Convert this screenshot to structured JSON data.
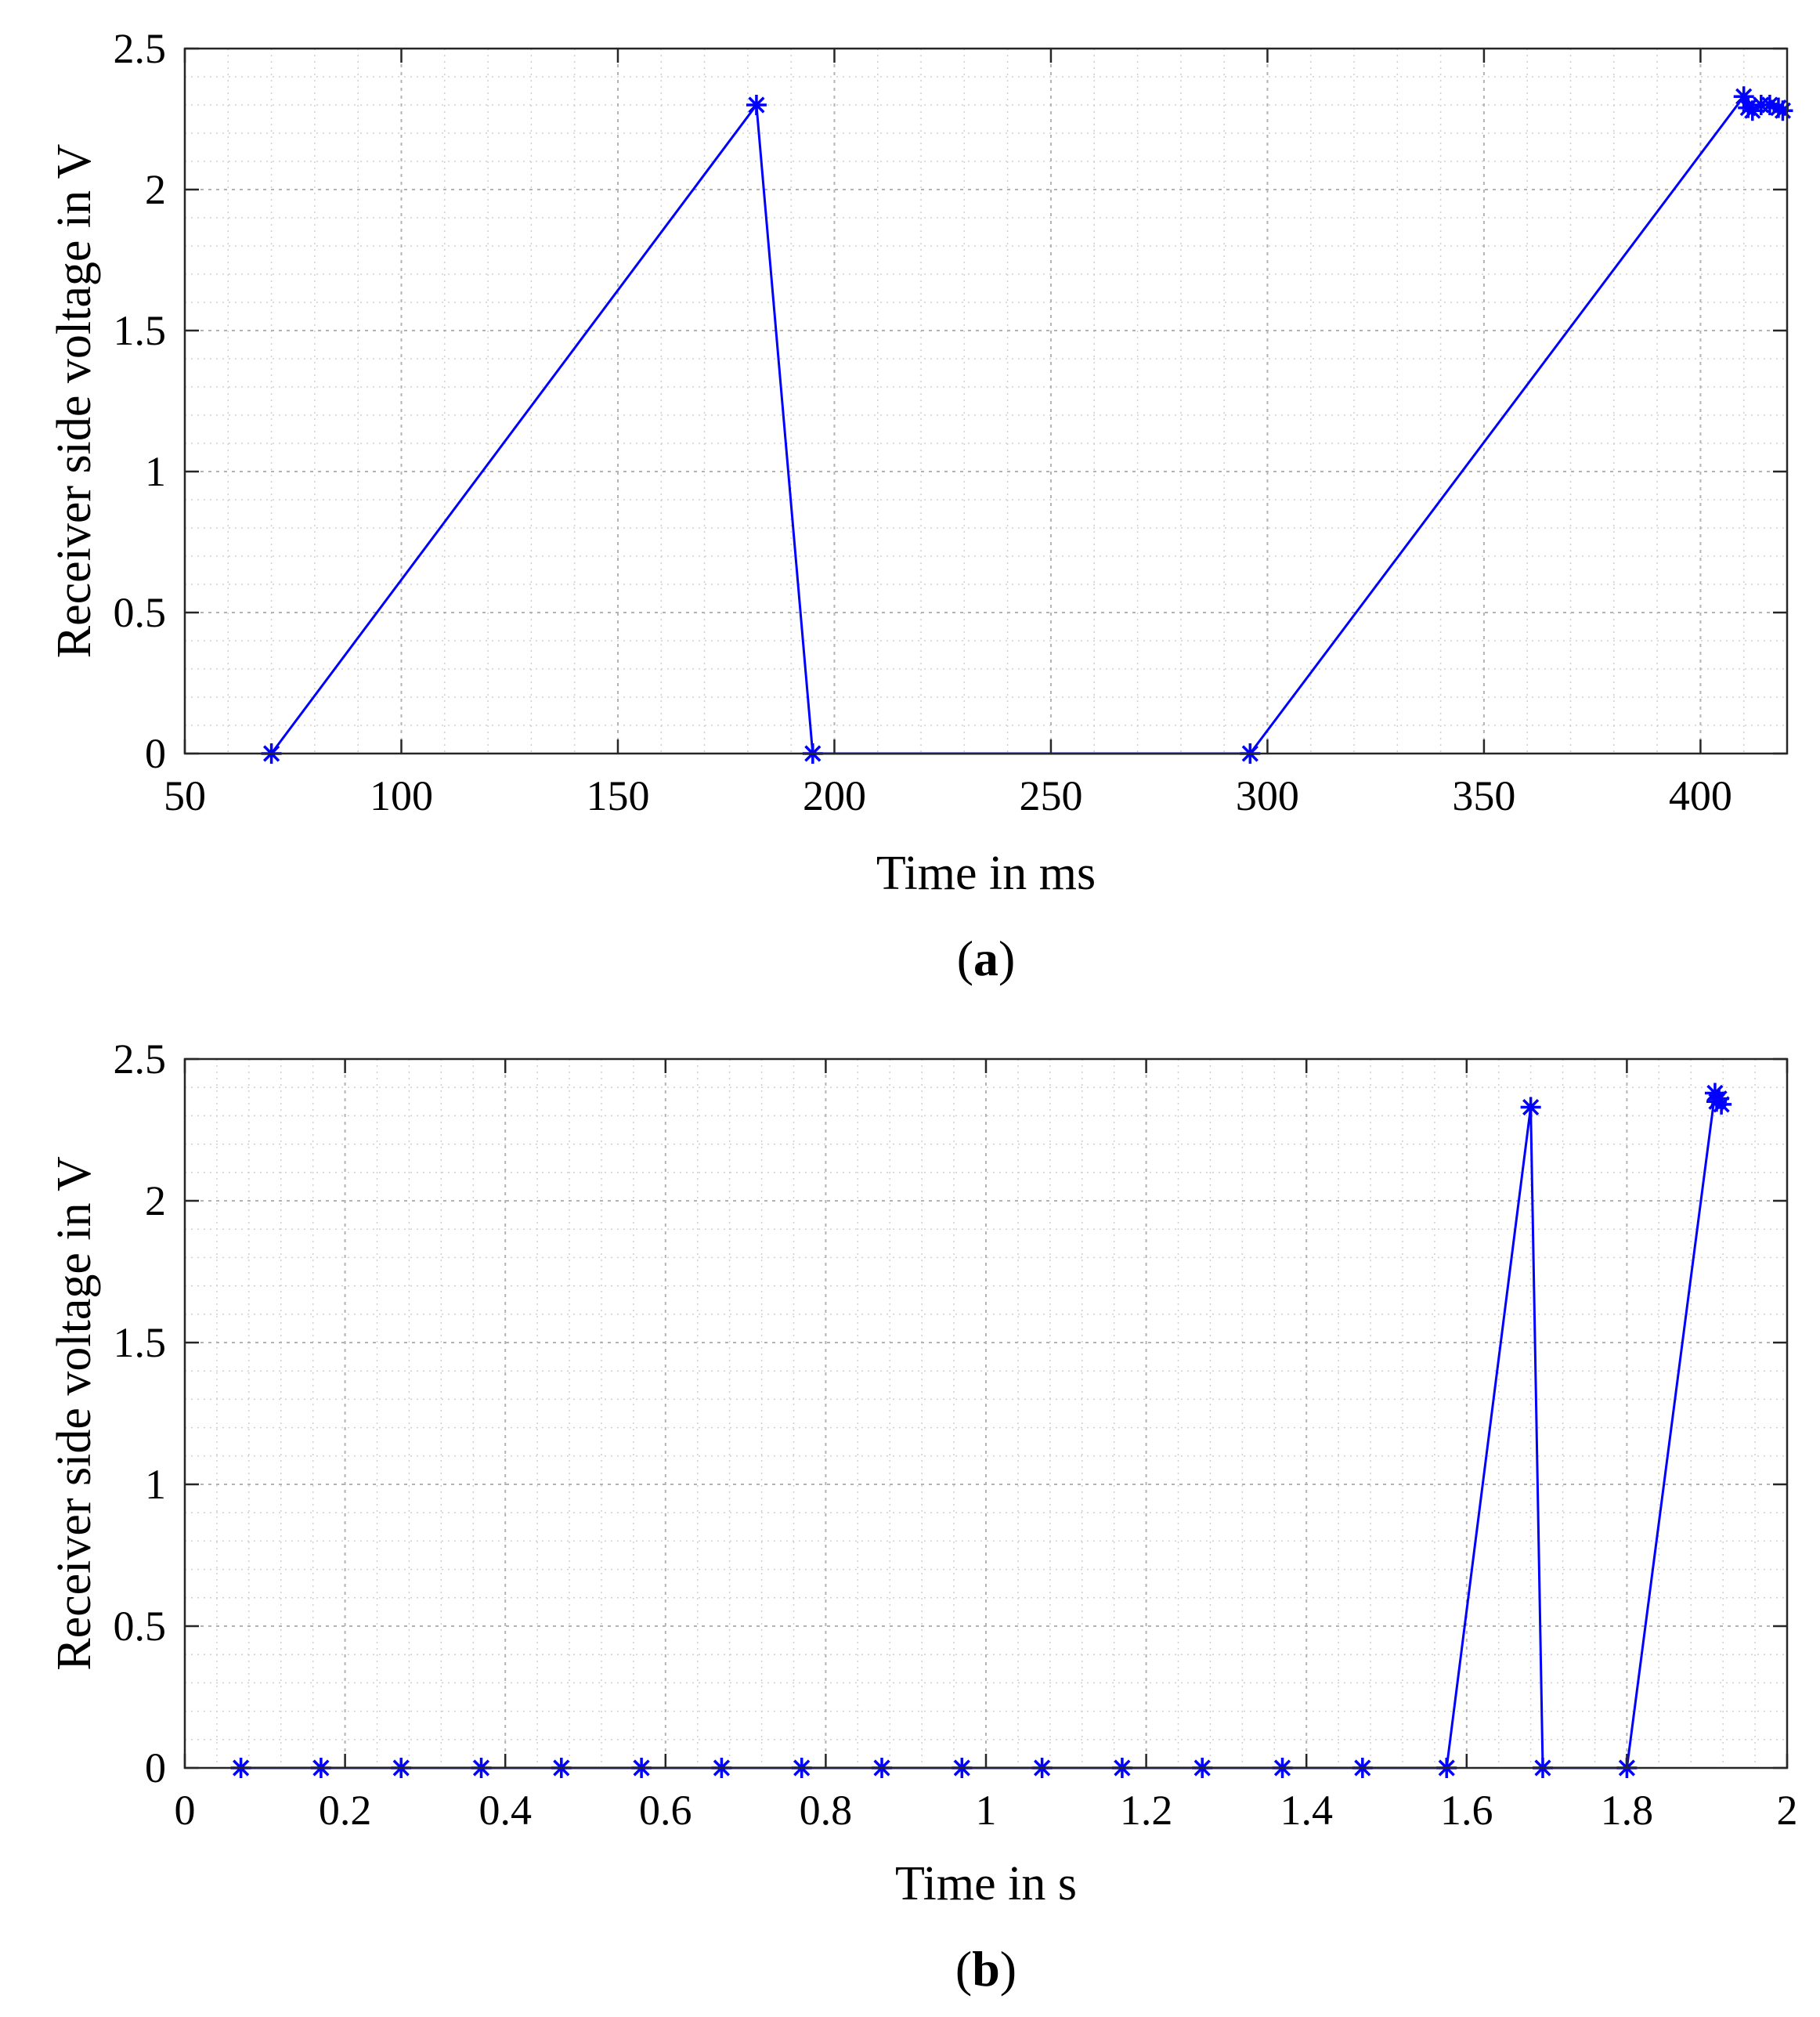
{
  "chart_data": [
    {
      "type": "line",
      "panel_label": "a",
      "xlabel": "Time in ms",
      "ylabel": "Receiver side voltage in V",
      "xlim": [
        50,
        420
      ],
      "ylim": [
        0,
        2.5
      ],
      "xticks": [
        50,
        100,
        150,
        200,
        250,
        300,
        350,
        400
      ],
      "xtick_labels": [
        "50",
        "100",
        "150",
        "200",
        "250",
        "300",
        "350",
        "400"
      ],
      "yticks": [
        0,
        0.5,
        1,
        1.5,
        2,
        2.5
      ],
      "ytick_labels": [
        "0",
        "0.5",
        "1",
        "1.5",
        "2",
        "2.5"
      ],
      "grid": true,
      "minor_grid": true,
      "color": "#0000ff",
      "marker": "asterisk",
      "series": [
        {
          "x": [
            70,
            182,
            195,
            296,
            410,
            411,
            412,
            414,
            416,
            418,
            419
          ],
          "y": [
            0,
            2.3,
            0,
            0,
            2.33,
            2.29,
            2.28,
            2.3,
            2.3,
            2.29,
            2.28
          ]
        }
      ]
    },
    {
      "type": "line",
      "panel_label": "b",
      "xlabel": "Time in s",
      "ylabel": "Receiver side voltage in V",
      "xlim": [
        0,
        2
      ],
      "ylim": [
        0,
        2.5
      ],
      "xticks": [
        0,
        0.2,
        0.4,
        0.6,
        0.8,
        1,
        1.2,
        1.4,
        1.6,
        1.8,
        2
      ],
      "xtick_labels": [
        "0",
        "0.2",
        "0.4",
        "0.6",
        "0.8",
        "1",
        "1.2",
        "1.4",
        "1.6",
        "1.8",
        "2"
      ],
      "yticks": [
        0,
        0.5,
        1,
        1.5,
        2,
        2.5
      ],
      "ytick_labels": [
        "0",
        "0.5",
        "1",
        "1.5",
        "2",
        "2.5"
      ],
      "grid": true,
      "minor_grid": true,
      "color": "#0000ff",
      "marker": "asterisk",
      "series": [
        {
          "x": [
            0.07,
            0.17,
            0.27,
            0.37,
            0.47,
            0.57,
            0.67,
            0.77,
            0.87,
            0.97,
            1.07,
            1.17,
            1.27,
            1.37,
            1.47,
            1.575,
            1.68,
            1.695,
            1.8,
            1.91,
            1.912,
            1.915,
            1.918
          ],
          "y": [
            0,
            0,
            0,
            0,
            0,
            0,
            0,
            0,
            0,
            0,
            0,
            0,
            0,
            0,
            0,
            0,
            2.33,
            0,
            0,
            2.38,
            2.35,
            2.36,
            2.34
          ]
        }
      ]
    }
  ]
}
